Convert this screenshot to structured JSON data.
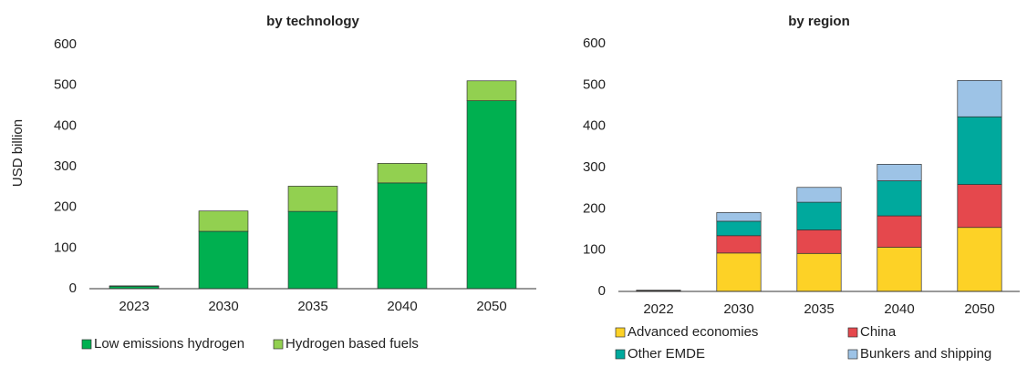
{
  "chart_data": [
    {
      "type": "stacked-bar",
      "title": "by technology",
      "y_label": "USD billion",
      "categories": [
        "2023",
        "2030",
        "2035",
        "2040",
        "2050"
      ],
      "series": [
        {
          "name": "Low emissions hydrogen",
          "color": "#00b050",
          "values": [
            6,
            141,
            190,
            260,
            462
          ]
        },
        {
          "name": "Hydrogen based fuels",
          "color": "#92d050",
          "values": [
            1,
            50,
            62,
            48,
            49
          ]
        }
      ],
      "ylim": [
        0,
        600
      ],
      "yticks": [
        0,
        100,
        200,
        300,
        400,
        500,
        600
      ]
    },
    {
      "type": "stacked-bar",
      "title": "by region",
      "categories": [
        "2022",
        "2030",
        "2035",
        "2040",
        "2050"
      ],
      "series": [
        {
          "name": "Advanced economies",
          "color": "#fdd226",
          "values": [
            2,
            93,
            92,
            107,
            155
          ]
        },
        {
          "name": "China",
          "color": "#e5484d",
          "values": [
            1,
            42,
            57,
            76,
            104
          ]
        },
        {
          "name": "Other EMDE",
          "color": "#00a99d",
          "values": [
            0,
            35,
            67,
            85,
            164
          ]
        },
        {
          "name": "Bunkers and shipping",
          "color": "#9dc3e6",
          "values": [
            0,
            21,
            36,
            40,
            88
          ]
        }
      ],
      "ylim": [
        0,
        600
      ],
      "yticks": [
        0,
        100,
        200,
        300,
        400,
        500,
        600
      ]
    }
  ]
}
